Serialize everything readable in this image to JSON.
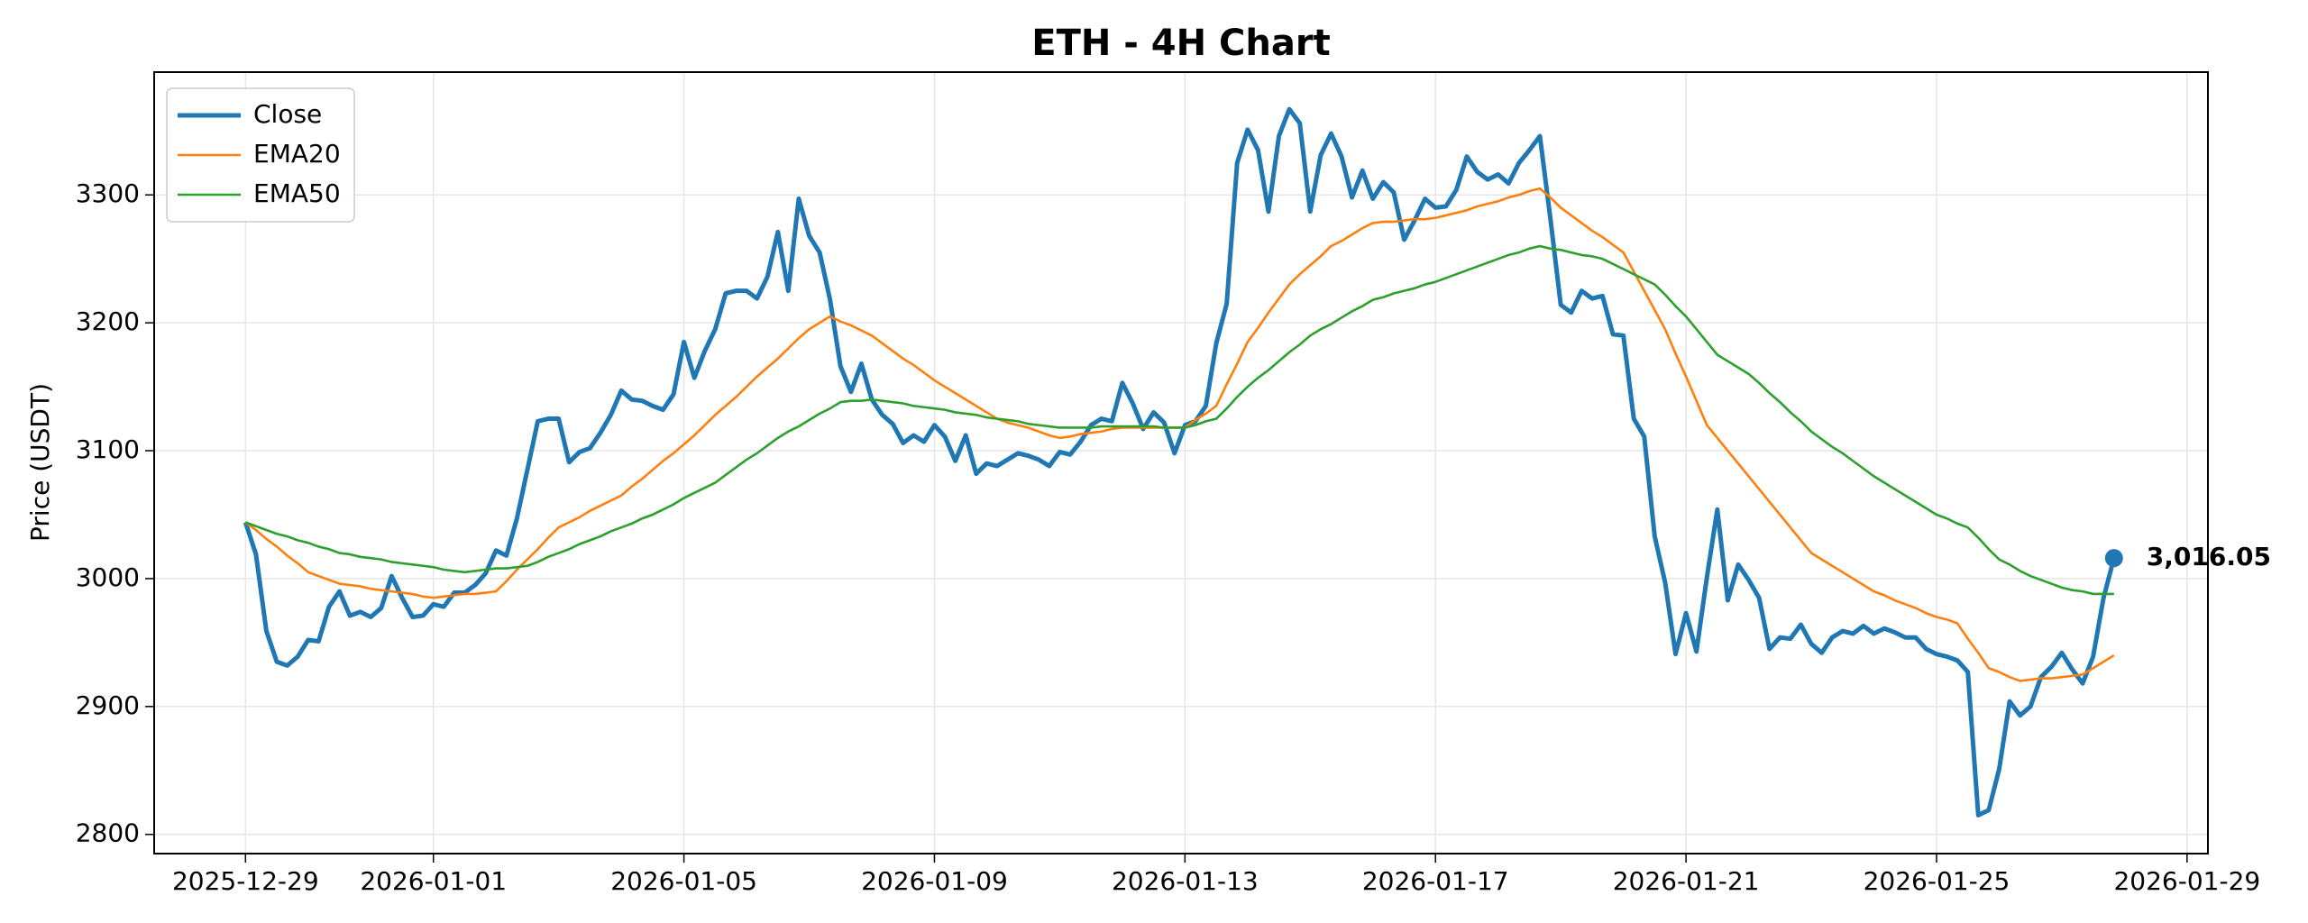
{
  "chart_data": {
    "type": "line",
    "title": "ETH - 4H Chart",
    "y_label": "Price (USDT)",
    "x": [
      "2025-12-29 00:00",
      "2025-12-29 04:00",
      "2025-12-29 08:00",
      "2025-12-29 12:00",
      "2025-12-29 16:00",
      "2025-12-29 20:00",
      "2025-12-30 00:00",
      "2025-12-30 04:00",
      "2025-12-30 08:00",
      "2025-12-30 12:00",
      "2025-12-30 16:00",
      "2025-12-30 20:00",
      "2025-12-31 00:00",
      "2025-12-31 04:00",
      "2025-12-31 08:00",
      "2025-12-31 12:00",
      "2025-12-31 16:00",
      "2025-12-31 20:00",
      "2026-01-01 00:00",
      "2026-01-01 04:00",
      "2026-01-01 08:00",
      "2026-01-01 12:00",
      "2026-01-01 16:00",
      "2026-01-01 20:00",
      "2026-01-02 00:00",
      "2026-01-02 04:00",
      "2026-01-02 08:00",
      "2026-01-02 12:00",
      "2026-01-02 16:00",
      "2026-01-02 20:00",
      "2026-01-03 00:00",
      "2026-01-03 04:00",
      "2026-01-03 08:00",
      "2026-01-03 12:00",
      "2026-01-03 16:00",
      "2026-01-03 20:00",
      "2026-01-04 00:00",
      "2026-01-04 04:00",
      "2026-01-04 08:00",
      "2026-01-04 12:00",
      "2026-01-04 16:00",
      "2026-01-04 20:00",
      "2026-01-05 00:00",
      "2026-01-05 04:00",
      "2026-01-05 08:00",
      "2026-01-05 12:00",
      "2026-01-05 16:00",
      "2026-01-05 20:00",
      "2026-01-06 00:00",
      "2026-01-06 04:00",
      "2026-01-06 08:00",
      "2026-01-06 12:00",
      "2026-01-06 16:00",
      "2026-01-06 20:00",
      "2026-01-07 00:00",
      "2026-01-07 04:00",
      "2026-01-07 08:00",
      "2026-01-07 12:00",
      "2026-01-07 16:00",
      "2026-01-07 20:00",
      "2026-01-08 00:00",
      "2026-01-08 04:00",
      "2026-01-08 08:00",
      "2026-01-08 12:00",
      "2026-01-08 16:00",
      "2026-01-08 20:00",
      "2026-01-09 00:00",
      "2026-01-09 04:00",
      "2026-01-09 08:00",
      "2026-01-09 12:00",
      "2026-01-09 16:00",
      "2026-01-09 20:00",
      "2026-01-10 00:00",
      "2026-01-10 04:00",
      "2026-01-10 08:00",
      "2026-01-10 12:00",
      "2026-01-10 16:00",
      "2026-01-10 20:00",
      "2026-01-11 00:00",
      "2026-01-11 04:00",
      "2026-01-11 08:00",
      "2026-01-11 12:00",
      "2026-01-11 16:00",
      "2026-01-11 20:00",
      "2026-01-12 00:00",
      "2026-01-12 04:00",
      "2026-01-12 08:00",
      "2026-01-12 12:00",
      "2026-01-12 16:00",
      "2026-01-12 20:00",
      "2026-01-13 00:00",
      "2026-01-13 04:00",
      "2026-01-13 08:00",
      "2026-01-13 12:00",
      "2026-01-13 16:00",
      "2026-01-13 20:00",
      "2026-01-14 00:00",
      "2026-01-14 04:00",
      "2026-01-14 08:00",
      "2026-01-14 12:00",
      "2026-01-14 16:00",
      "2026-01-14 20:00",
      "2026-01-15 00:00",
      "2026-01-15 04:00",
      "2026-01-15 08:00",
      "2026-01-15 12:00",
      "2026-01-15 16:00",
      "2026-01-15 20:00",
      "2026-01-16 00:00",
      "2026-01-16 04:00",
      "2026-01-16 08:00",
      "2026-01-16 12:00",
      "2026-01-16 16:00",
      "2026-01-16 20:00",
      "2026-01-17 00:00",
      "2026-01-17 04:00",
      "2026-01-17 08:00",
      "2026-01-17 12:00",
      "2026-01-17 16:00",
      "2026-01-17 20:00",
      "2026-01-18 00:00",
      "2026-01-18 04:00",
      "2026-01-18 08:00",
      "2026-01-18 12:00",
      "2026-01-18 16:00",
      "2026-01-18 20:00",
      "2026-01-19 00:00",
      "2026-01-19 04:00",
      "2026-01-19 08:00",
      "2026-01-19 12:00",
      "2026-01-19 16:00",
      "2026-01-19 20:00",
      "2026-01-20 00:00",
      "2026-01-20 04:00",
      "2026-01-20 08:00",
      "2026-01-20 12:00",
      "2026-01-20 16:00",
      "2026-01-20 20:00",
      "2026-01-21 00:00",
      "2026-01-21 04:00",
      "2026-01-21 08:00",
      "2026-01-21 12:00",
      "2026-01-21 16:00",
      "2026-01-21 20:00",
      "2026-01-22 00:00",
      "2026-01-22 04:00",
      "2026-01-22 08:00",
      "2026-01-22 12:00",
      "2026-01-22 16:00",
      "2026-01-22 20:00",
      "2026-01-23 00:00",
      "2026-01-23 04:00",
      "2026-01-23 08:00",
      "2026-01-23 12:00",
      "2026-01-23 16:00",
      "2026-01-23 20:00",
      "2026-01-24 00:00",
      "2026-01-24 04:00",
      "2026-01-24 08:00",
      "2026-01-24 12:00",
      "2026-01-24 16:00",
      "2026-01-24 20:00",
      "2026-01-25 00:00",
      "2026-01-25 04:00",
      "2026-01-25 08:00",
      "2026-01-25 12:00",
      "2026-01-25 16:00",
      "2026-01-25 20:00",
      "2026-01-26 00:00",
      "2026-01-26 04:00",
      "2026-01-26 08:00",
      "2026-01-26 12:00",
      "2026-01-26 16:00",
      "2026-01-26 20:00",
      "2026-01-27 00:00",
      "2026-01-27 04:00",
      "2026-01-27 08:00",
      "2026-01-27 12:00",
      "2026-01-27 16:00",
      "2026-01-27 20:00"
    ],
    "series": [
      {
        "name": "Close",
        "color": "#1f77b4",
        "width": 5,
        "values": [
          3044,
          3019,
          2959,
          2935,
          2932,
          2939,
          2952,
          2951,
          2978,
          2990,
          2971,
          2974,
          2970,
          2977,
          3002,
          2985,
          2970,
          2971,
          2980,
          2978,
          2989,
          2989,
          2995,
          3004,
          3022,
          3018,
          3047,
          3085,
          3123,
          3125,
          3125,
          3091,
          3099,
          3102,
          3114,
          3128,
          3147,
          3140,
          3139,
          3135,
          3132,
          3144,
          3185,
          3157,
          3178,
          3195,
          3223,
          3225,
          3225,
          3219,
          3236,
          3271,
          3225,
          3297,
          3268,
          3255,
          3218,
          3166,
          3146,
          3168,
          3140,
          3128,
          3121,
          3106,
          3112,
          3107,
          3120,
          3111,
          3092,
          3112,
          3082,
          3090,
          3088,
          3093,
          3098,
          3096,
          3093,
          3088,
          3099,
          3097,
          3107,
          3120,
          3125,
          3123,
          3153,
          3137,
          3117,
          3130,
          3122,
          3098,
          3120,
          3123,
          3135,
          3184,
          3215,
          3325,
          3351,
          3335,
          3287,
          3346,
          3367,
          3356,
          3287,
          3331,
          3348,
          3330,
          3298,
          3319,
          3297,
          3310,
          3302,
          3265,
          3280,
          3297,
          3290,
          3291,
          3304,
          3330,
          3318,
          3312,
          3316,
          3309,
          3325,
          3335,
          3346,
          3282,
          3214,
          3208,
          3225,
          3219,
          3221,
          3191,
          3190,
          3125,
          3111,
          3033,
          2997,
          2941,
          2973,
          2943,
          3001,
          3054,
          2983,
          3011,
          2999,
          2985,
          2945,
          2954,
          2953,
          2964,
          2949,
          2942,
          2954,
          2959,
          2957,
          2963,
          2957,
          2961,
          2958,
          2954,
          2954,
          2945,
          2941,
          2939,
          2936,
          2927,
          2815,
          2819,
          2851,
          2904,
          2893,
          2900,
          2923,
          2931,
          2942,
          2929,
          2918,
          2939,
          2985,
          3016.05
        ],
        "value_labels": [
          null,
          null,
          null,
          null,
          null,
          null,
          null,
          null,
          null,
          null,
          null,
          null,
          null,
          null,
          null,
          null,
          null,
          null,
          null,
          null,
          null,
          null,
          null,
          null,
          null,
          null,
          null,
          null,
          null,
          null,
          null,
          null,
          null,
          null,
          null,
          null,
          null,
          null,
          null,
          null,
          null,
          null,
          null,
          null,
          null,
          null,
          null,
          null,
          null,
          null,
          null,
          null,
          null,
          null,
          null,
          null,
          null,
          null,
          null,
          null,
          null,
          null,
          null,
          null,
          null,
          null,
          null,
          null,
          null,
          null,
          null,
          null,
          null,
          null,
          null,
          null,
          null,
          null,
          null,
          null,
          null,
          null,
          null,
          null,
          null,
          null,
          null,
          null,
          null,
          null,
          null,
          null,
          null,
          null,
          null,
          null,
          null,
          null,
          null,
          null,
          null,
          null,
          null,
          null,
          null,
          null,
          null,
          null,
          null,
          null,
          null,
          null,
          null,
          null,
          null,
          null,
          null,
          null,
          null,
          null,
          null,
          null,
          null,
          null,
          null,
          null,
          null,
          null,
          null,
          null,
          null,
          null,
          null,
          null,
          null,
          null,
          null,
          null,
          null,
          null,
          null,
          null,
          null,
          null,
          null,
          null,
          null,
          null,
          null,
          null,
          null,
          null,
          null,
          null,
          null,
          null,
          null,
          null,
          null,
          null,
          null,
          null,
          null,
          null,
          null,
          null,
          null,
          null,
          null,
          null,
          null,
          null,
          null,
          null,
          null,
          null,
          null,
          null,
          null,
          "3,016.05"
        ]
      },
      {
        "name": "EMA20",
        "color": "#ff7f0e",
        "width": 2.6,
        "values": [
          3044,
          3038,
          3031,
          3025,
          3018,
          3012,
          3005,
          3002,
          2999,
          2996,
          2995,
          2994,
          2992,
          2991,
          2990,
          2989,
          2988,
          2986,
          2985,
          2986,
          2987,
          2988,
          2988,
          2989,
          2990,
          2998,
          3007,
          3015,
          3023,
          3032,
          3040,
          3044,
          3048,
          3053,
          3057,
          3061,
          3065,
          3072,
          3078,
          3085,
          3092,
          3098,
          3105,
          3112,
          3120,
          3128,
          3135,
          3142,
          3150,
          3158,
          3165,
          3172,
          3180,
          3188,
          3195,
          3200,
          3205,
          3201,
          3198,
          3194,
          3190,
          3184,
          3178,
          3172,
          3167,
          3161,
          3155,
          3150,
          3145,
          3140,
          3135,
          3130,
          3125,
          3122,
          3120,
          3118,
          3115,
          3112,
          3110,
          3111,
          3113,
          3114,
          3115,
          3117,
          3118,
          3118,
          3118,
          3118,
          3118,
          3118,
          3118,
          3124,
          3129,
          3135,
          3152,
          3168,
          3185,
          3196,
          3208,
          3219,
          3230,
          3238,
          3245,
          3252,
          3260,
          3264,
          3269,
          3274,
          3278,
          3279,
          3279,
          3280,
          3281,
          3281,
          3282,
          3284,
          3286,
          3288,
          3291,
          3293,
          3295,
          3298,
          3300,
          3303,
          3305,
          3298,
          3290,
          3284,
          3278,
          3272,
          3267,
          3261,
          3255,
          3240,
          3225,
          3210,
          3195,
          3176,
          3158,
          3139,
          3120,
          3110,
          3100,
          3090,
          3080,
          3070,
          3060,
          3050,
          3040,
          3030,
          3020,
          3015,
          3010,
          3005,
          3000,
          2995,
          2990,
          2987,
          2983,
          2980,
          2977,
          2973,
          2970,
          2968,
          2965,
          2953,
          2942,
          2930,
          2927,
          2923,
          2920,
          2921,
          2922,
          2922,
          2923,
          2924,
          2925,
          2930,
          2935,
          2940
        ]
      },
      {
        "name": "EMA50",
        "color": "#2ca02c",
        "width": 2.6,
        "values": [
          3044,
          3041,
          3038,
          3035,
          3033,
          3030,
          3028,
          3025,
          3023,
          3020,
          3019,
          3017,
          3016,
          3015,
          3013,
          3012,
          3011,
          3010,
          3009,
          3007,
          3006,
          3005,
          3006,
          3007,
          3008,
          3008,
          3009,
          3010,
          3013,
          3017,
          3020,
          3023,
          3027,
          3030,
          3033,
          3037,
          3040,
          3043,
          3047,
          3050,
          3054,
          3058,
          3063,
          3067,
          3071,
          3075,
          3081,
          3087,
          3093,
          3098,
          3104,
          3110,
          3115,
          3119,
          3124,
          3129,
          3133,
          3138,
          3139,
          3139,
          3140,
          3139,
          3138,
          3137,
          3135,
          3134,
          3133,
          3132,
          3130,
          3129,
          3128,
          3126,
          3125,
          3124,
          3123,
          3121,
          3120,
          3119,
          3118,
          3118,
          3118,
          3118,
          3119,
          3119,
          3119,
          3119,
          3119,
          3119,
          3118,
          3118,
          3118,
          3120,
          3123,
          3125,
          3133,
          3142,
          3150,
          3157,
          3163,
          3170,
          3177,
          3183,
          3190,
          3195,
          3199,
          3204,
          3209,
          3213,
          3218,
          3220,
          3223,
          3225,
          3227,
          3230,
          3232,
          3235,
          3238,
          3241,
          3244,
          3247,
          3250,
          3253,
          3255,
          3258,
          3260,
          3258,
          3257,
          3255,
          3253,
          3252,
          3250,
          3246,
          3242,
          3238,
          3234,
          3230,
          3222,
          3213,
          3205,
          3195,
          3185,
          3175,
          3170,
          3165,
          3160,
          3153,
          3145,
          3138,
          3130,
          3123,
          3115,
          3109,
          3103,
          3098,
          3092,
          3086,
          3080,
          3075,
          3070,
          3065,
          3060,
          3055,
          3050,
          3047,
          3043,
          3040,
          3032,
          3023,
          3015,
          3011,
          3006,
          3002,
          2999,
          2996,
          2993,
          2991,
          2990,
          2988,
          2988,
          2988
        ]
      }
    ],
    "xlim": [
      "2025-12-27 13:00",
      "2026-01-29 08:00"
    ],
    "xticks": [
      "2025-12-29",
      "2026-01-01",
      "2026-01-05",
      "2026-01-09",
      "2026-01-13",
      "2026-01-17",
      "2026-01-21",
      "2026-01-25",
      "2026-01-29"
    ],
    "ylim": [
      2785,
      3396
    ],
    "yticks": [
      2800,
      2900,
      3000,
      3100,
      3200,
      3300
    ],
    "grid": true,
    "legend": "upper left"
  }
}
